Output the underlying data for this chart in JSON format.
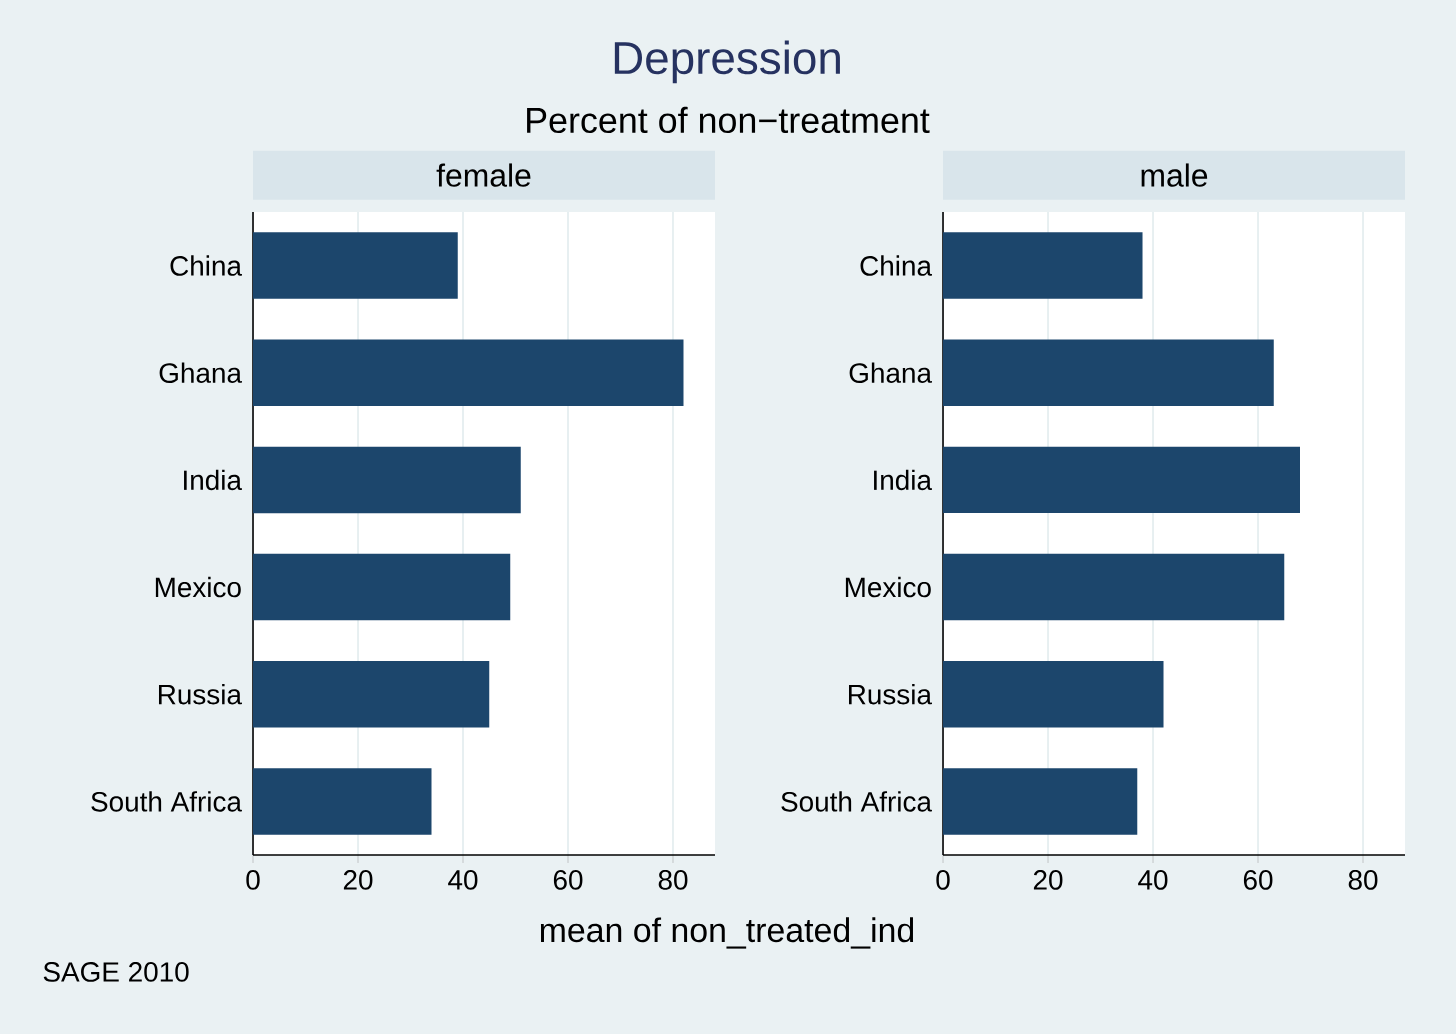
{
  "chart_data": [
    {
      "type": "bar",
      "orientation": "horizontal",
      "title": "female",
      "categories": [
        "China",
        "Ghana",
        "India",
        "Mexico",
        "Russia",
        "South Africa"
      ],
      "values": [
        39,
        82,
        51,
        49,
        45,
        34
      ],
      "color": "#1c466c",
      "xlim": [
        0,
        88
      ],
      "xticks": [
        0,
        20,
        40,
        60,
        80
      ],
      "grid": "x",
      "xlabel": "mean of non_treated_ind",
      "annotations": [
        "Depression",
        "Percent of non−treatment",
        "SAGE 2010"
      ]
    },
    {
      "type": "bar",
      "orientation": "horizontal",
      "title": "male",
      "categories": [
        "China",
        "Ghana",
        "India",
        "Mexico",
        "Russia",
        "South Africa"
      ],
      "values": [
        38,
        63,
        68,
        65,
        42,
        37
      ],
      "color": "#1c466c",
      "xlim": [
        0,
        88
      ],
      "xticks": [
        0,
        20,
        40,
        60,
        80
      ],
      "grid": "x"
    }
  ]
}
